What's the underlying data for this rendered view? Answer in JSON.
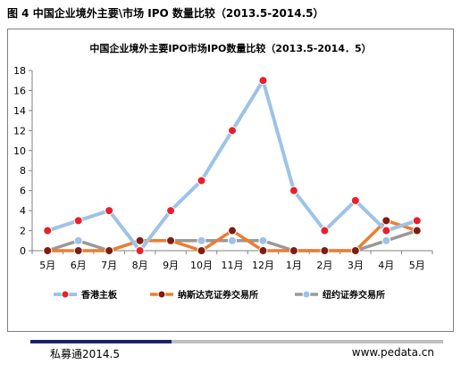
{
  "figure_caption": "图 4  中国企业境外主要\\市场 IPO 数量比较（2013.5-2014.5）",
  "footer": {
    "source": "私募通2014.5",
    "website": "www.pedata.cn"
  },
  "colors": {
    "hk": "#9dc3e6",
    "hk_marker": "#e8202a",
    "nasdaq": "#ed7d31",
    "nasdaq_marker": "#7f1d13",
    "nyse": "#999999",
    "nyse_marker": "#9dc3e6",
    "axis": "#808080"
  },
  "chart_data": {
    "type": "line",
    "title": "中国企业境外主要IPO市场IPO数量比较（2013.5-2014．5）",
    "xlabel": "",
    "ylabel": "",
    "categories": [
      "5月",
      "6月",
      "7月",
      "8月",
      "9月",
      "10月",
      "11月",
      "12月",
      "1月",
      "2月",
      "3月",
      "4月",
      "5月"
    ],
    "ylim": [
      0,
      18
    ],
    "yticks": [
      "0",
      "2",
      "4",
      "6",
      "8",
      "10",
      "12",
      "14",
      "16",
      "18"
    ],
    "grid": false,
    "legend_position": "bottom",
    "series": [
      {
        "name": "香港主板",
        "values": [
          2,
          3,
          4,
          0,
          4,
          7,
          12,
          17,
          6,
          2,
          5,
          2,
          3
        ]
      },
      {
        "name": "纳斯达克证券交易所",
        "values": [
          0,
          0,
          0,
          1,
          1,
          0,
          2,
          0,
          0,
          0,
          0,
          3,
          2
        ]
      },
      {
        "name": "纽约证券交易所",
        "values": [
          0,
          1,
          0,
          1,
          1,
          1,
          1,
          1,
          0,
          0,
          0,
          1,
          2
        ]
      }
    ]
  }
}
